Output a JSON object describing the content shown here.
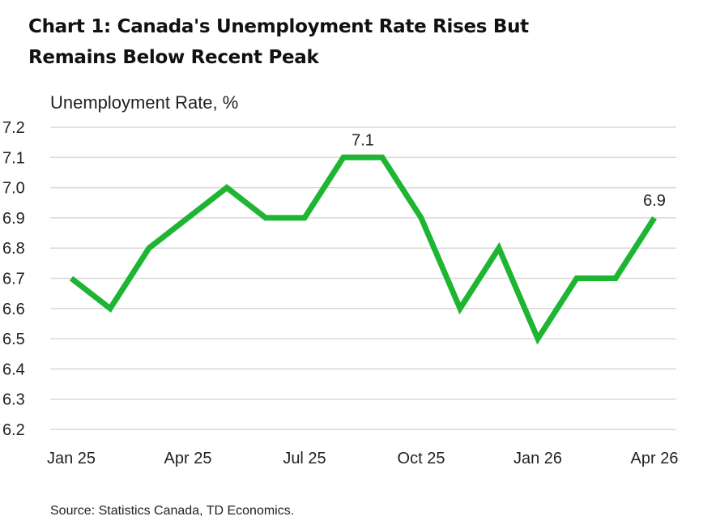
{
  "chart_data": {
    "type": "line",
    "title": "Chart 1: Canada's Unemployment Rate Rises But Remains Below Recent Peak",
    "title_lines": [
      "Chart 1: Canada's Unemployment Rate Rises But",
      "Remains Below Recent Peak"
    ],
    "ylabel": "Unemployment Rate, %",
    "xlabel": "",
    "source": "Source: Statistics Canada, TD Economics.",
    "x": [
      "Jan 25",
      "Feb 25",
      "Mar 25",
      "Apr 25",
      "May 25",
      "Jun 25",
      "Jul 25",
      "Aug 25",
      "Sep 25",
      "Oct 25",
      "Nov 25",
      "Dec 25",
      "Jan 26",
      "Feb 26",
      "Mar 26",
      "Apr 26"
    ],
    "x_tick_labels": [
      "Jan 25",
      "Apr 25",
      "Jul 25",
      "Oct 25",
      "Jan 26",
      "Apr 26"
    ],
    "y_tick_labels": [
      "6.2",
      "6.3",
      "6.4",
      "6.5",
      "6.6",
      "6.7",
      "6.8",
      "6.9",
      "7.0",
      "7.1",
      "7.2"
    ],
    "series": [
      {
        "name": "",
        "values": [
          6.7,
          6.6,
          6.8,
          6.9,
          7.0,
          6.9,
          6.9,
          7.1,
          7.1,
          6.9,
          6.6,
          6.8,
          6.5,
          6.7,
          6.7,
          6.9
        ]
      }
    ],
    "annotations": [
      {
        "x": "Aug 25",
        "text": "7.1"
      },
      {
        "x": "Apr 26",
        "text": "6.9"
      }
    ],
    "ylim": [
      6.2,
      7.2
    ],
    "grid": true,
    "line_color": "#1db532",
    "grid_color": "#d9d9d9"
  }
}
